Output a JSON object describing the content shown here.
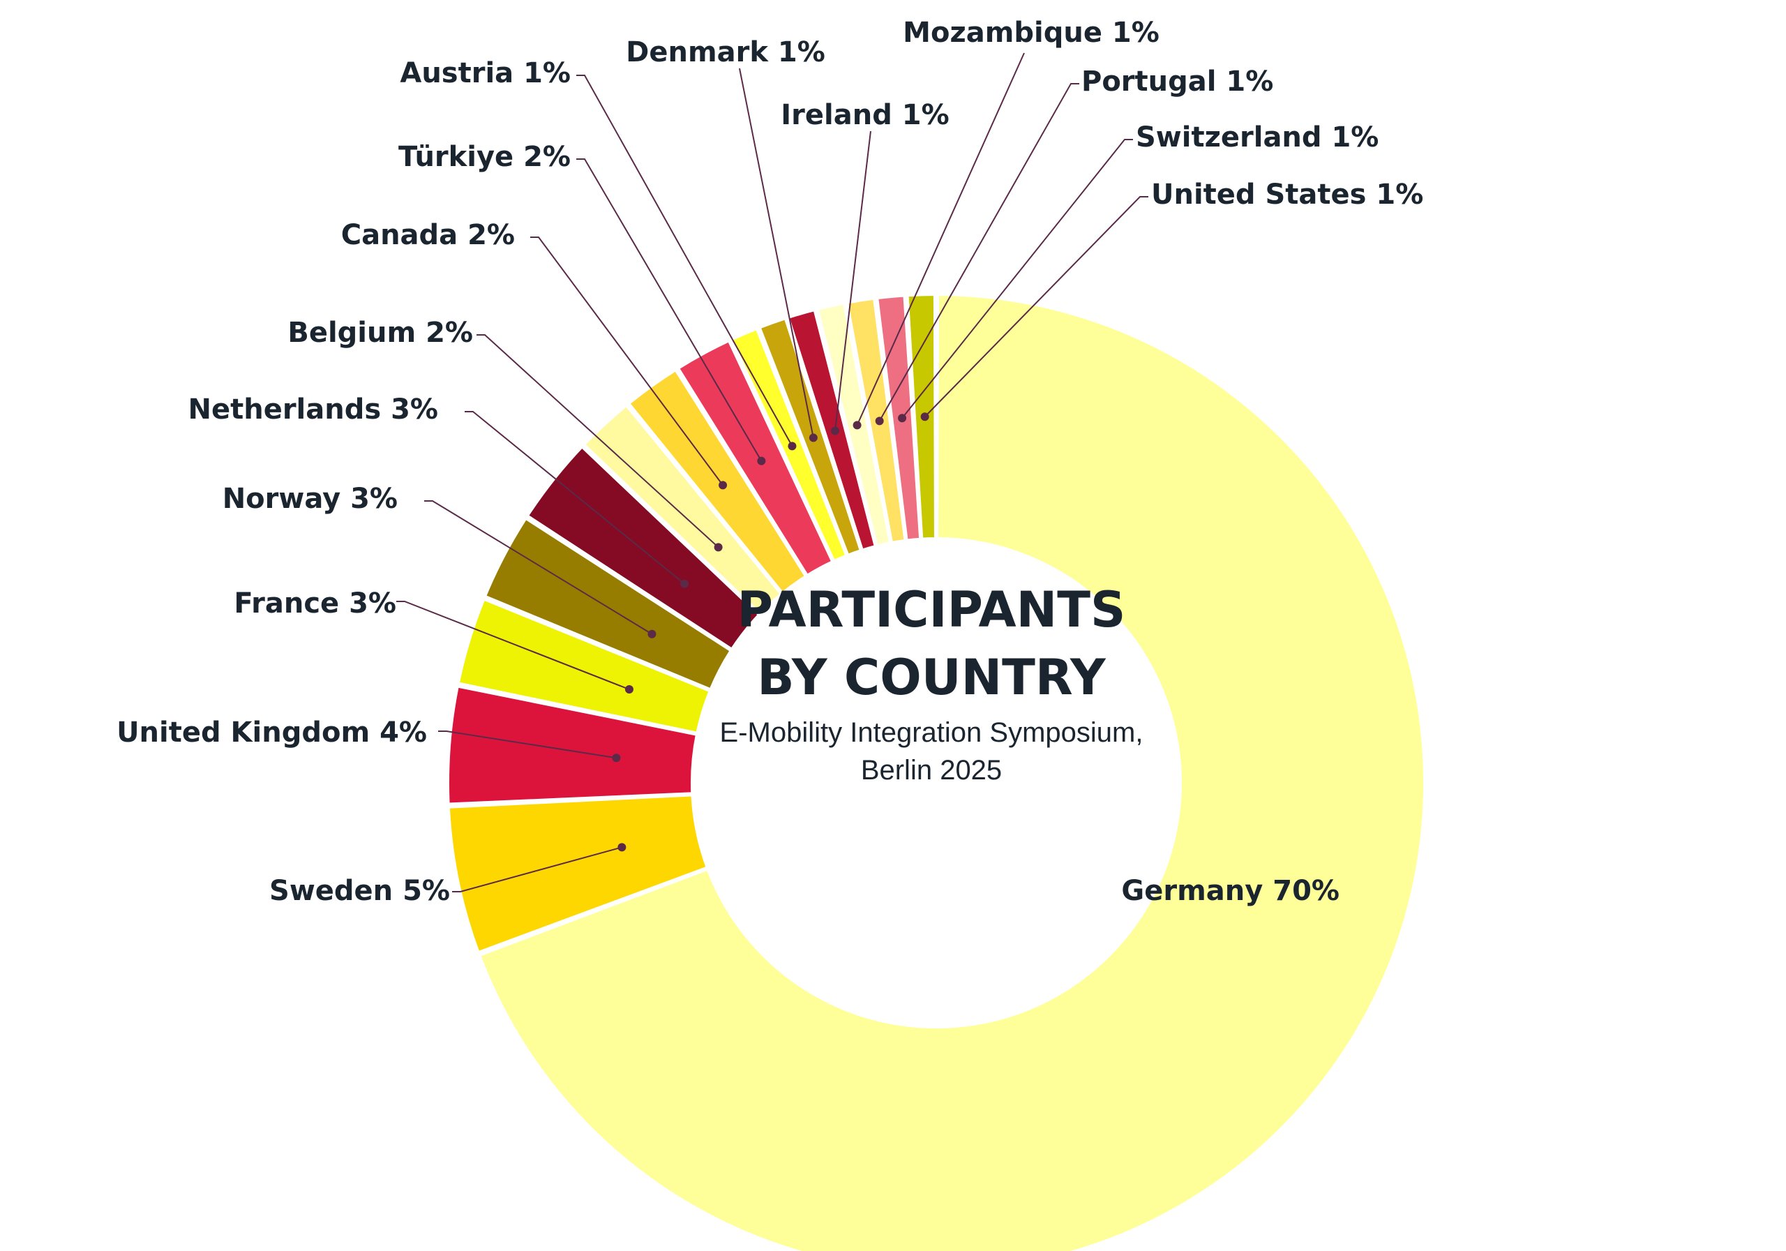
{
  "chart_data": {
    "type": "pie",
    "variant": "donut",
    "title_lines": [
      "PARTICIPANTS",
      "BY COUNTRY"
    ],
    "subtitle_lines": [
      "E-Mobility Integration Symposium,",
      "Berlin 2025"
    ],
    "slices": [
      {
        "label": "Germany 70%",
        "name": "Germany",
        "value": 70,
        "color": "#FFFF99"
      },
      {
        "label": "Sweden 5%",
        "name": "Sweden",
        "value": 5,
        "color": "#FFD700"
      },
      {
        "label": "United Kingdom 4%",
        "name": "United Kingdom",
        "value": 4,
        "color": "#DC143C"
      },
      {
        "label": "France 3%",
        "name": "France",
        "value": 3,
        "color": "#EEF203"
      },
      {
        "label": "Norway 3%",
        "name": "Norway",
        "value": 3,
        "color": "#967D00"
      },
      {
        "label": "Netherlands 3%",
        "name": "Netherlands",
        "value": 3,
        "color": "#850A23"
      },
      {
        "label": "Belgium 2%",
        "name": "Belgium",
        "value": 2,
        "color": "#FFFAA0"
      },
      {
        "label": "Canada 2%",
        "name": "Canada",
        "value": 2,
        "color": "#FFD732"
      },
      {
        "label": "Türkiye 2%",
        "name": "Türkiye",
        "value": 2,
        "color": "#EC3A5A"
      },
      {
        "label": "Austria 1%",
        "name": "Austria",
        "value": 1,
        "color": "#FFFF2D"
      },
      {
        "label": "Denmark 1%",
        "name": "Denmark",
        "value": 1,
        "color": "#C8A50A"
      },
      {
        "label": "Ireland 1%",
        "name": "Ireland",
        "value": 1,
        "color": "#B91432"
      },
      {
        "label": "Mozambique 1%",
        "name": "Mozambique",
        "value": 1,
        "color": "#FFFFC3"
      },
      {
        "label": "Portugal 1%",
        "name": "Portugal",
        "value": 1,
        "color": "#FFE164"
      },
      {
        "label": "Switzerland 1%",
        "name": "Switzerland",
        "value": 1,
        "color": "#EE6E82"
      },
      {
        "label": "United States 1%",
        "name": "United States",
        "value": 1,
        "color": "#C8C800"
      }
    ],
    "label_color": "#1a2530",
    "leader_color": "#5a2a48"
  }
}
